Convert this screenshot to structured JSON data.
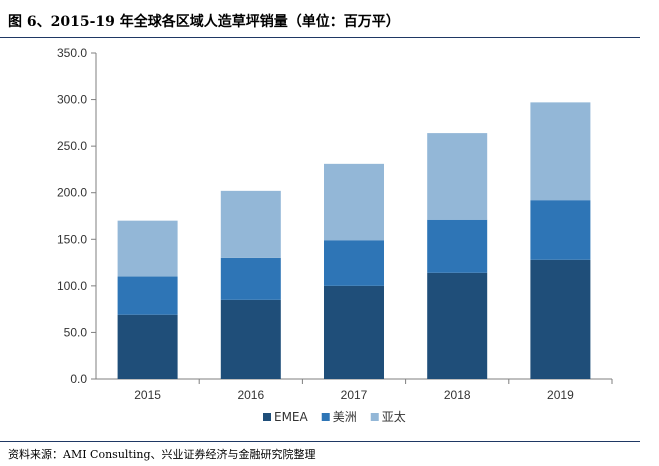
{
  "title": "图 6、2015-19 年全球各区域人造草坪销量（单位：百万平）",
  "source": "资料来源：AMI Consulting、兴业证券经济与金融研究院整理",
  "chart_data": {
    "type": "bar",
    "stacked": true,
    "title": "图 6、2015-19 年全球各区域人造草坪销量（单位：百万平）",
    "xlabel": "",
    "ylabel": "",
    "ylim": [
      0,
      350
    ],
    "yticks": [
      "0.0",
      "50.0",
      "100.0",
      "150.0",
      "200.0",
      "250.0",
      "300.0",
      "350.0"
    ],
    "categories": [
      "2015",
      "2016",
      "2017",
      "2018",
      "2019"
    ],
    "series": [
      {
        "name": "EMEA",
        "color": "#1f4e79",
        "values": [
          69,
          85,
          100,
          114,
          128
        ]
      },
      {
        "name": "美洲",
        "color": "#2e75b6",
        "values": [
          41,
          45,
          49,
          57,
          64
        ]
      },
      {
        "name": "亚太",
        "color": "#93b7d7",
        "values": [
          60,
          72,
          82,
          93,
          105
        ]
      }
    ],
    "legend_position": "bottom-center",
    "grid": false
  }
}
